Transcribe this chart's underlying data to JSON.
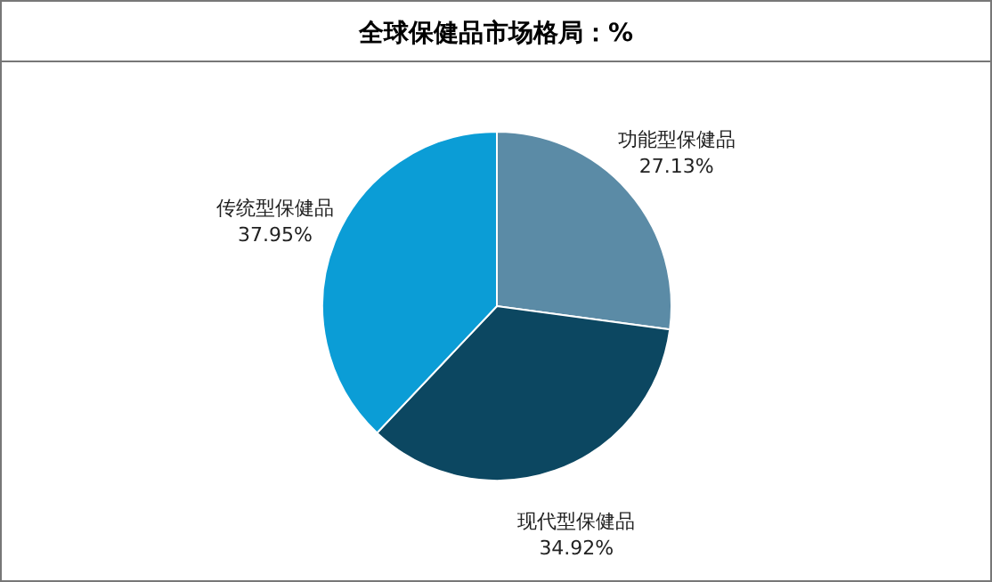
{
  "chart_data": {
    "type": "pie",
    "title": "全球保健品市场格局：%",
    "categories": [
      "功能型保健品",
      "现代型保健品",
      "传统型保健品"
    ],
    "values": [
      27.13,
      34.92,
      37.95
    ],
    "colors": [
      "#5b8ba6",
      "#0c4761",
      "#0b9dd6"
    ],
    "value_labels": [
      "27.13%",
      "34.92%",
      "37.95%"
    ]
  }
}
